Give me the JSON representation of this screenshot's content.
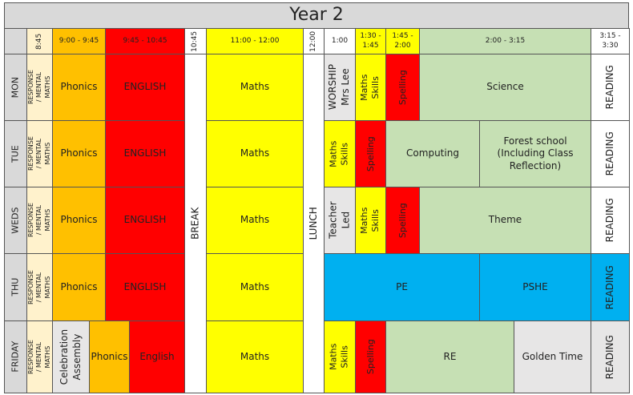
{
  "title": "Year 2",
  "header": [
    "8:45",
    "9:00 - 9:45",
    "9:45 - 10:45",
    "10:45",
    "11:00 - 12:00",
    "12:00",
    "1:00",
    "1:30 - 1:45",
    "1:45 - 2:00",
    "2:00 - 3:15",
    "3:15 - 3:30"
  ],
  "days": [
    "MON",
    "TUE",
    "WEDS",
    "THU",
    "FRIDAY"
  ],
  "shared": {
    "break": "BREAK",
    "lunch": "LUNCH"
  },
  "rows": [
    [
      "RESPONSE / MENTAL MATHS",
      "Phonics",
      "ENGLISH",
      "Maths",
      "WORSHIP Mrs Lee",
      "Maths Skills",
      "Spelling",
      "Science",
      "READING"
    ],
    [
      "RESPONSE / MENTAL MATHS",
      "Phonics",
      "ENGLISH",
      "Maths",
      "Maths Skills",
      "Spelling",
      "Computing",
      "Forest school (Including Class Reflection)",
      "READING"
    ],
    [
      "RESPONSE / MENTAL MATHS",
      "Phonics",
      "ENGLISH",
      "Maths",
      "Teacher Led",
      "Maths Skills",
      "Spelling",
      "Theme",
      "READING"
    ],
    [
      "RESPONSE / MENTAL MATHS",
      "Phonics",
      "ENGLISH",
      "Maths",
      "PE",
      "PSHE",
      "READING"
    ],
    [
      "RESPONSE / MENTAL MATHS",
      "Celebration Assembly",
      "Phonics",
      "English",
      "Maths",
      "Maths Skills",
      "Spelling",
      "RE",
      "Golden Time",
      "READING"
    ]
  ]
}
